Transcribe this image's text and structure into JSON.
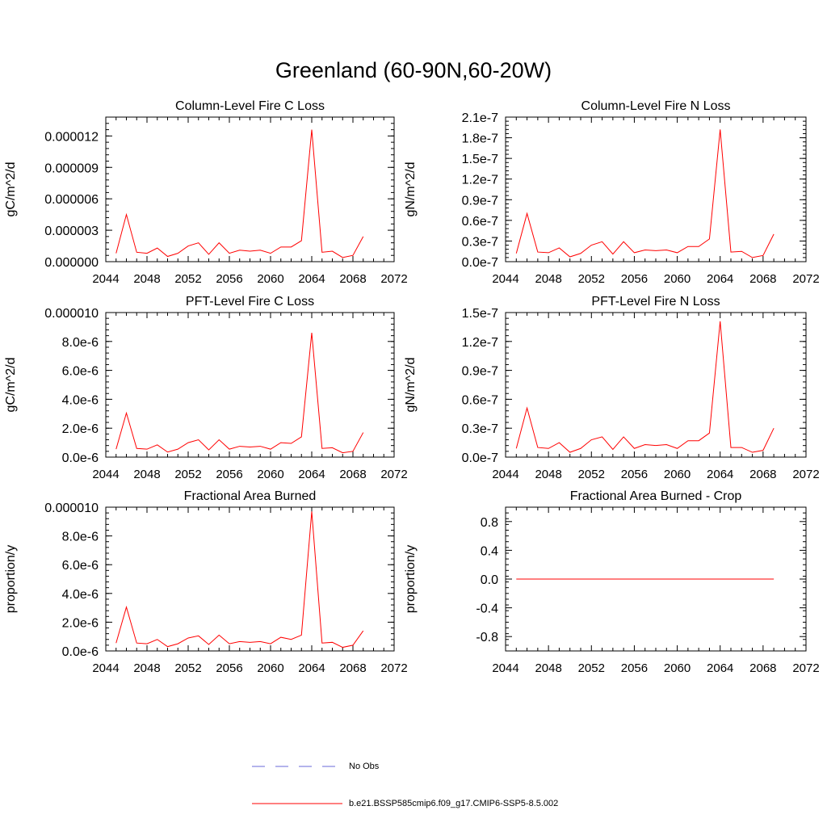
{
  "title": "Greenland (60-90N,60-20W)",
  "colors": {
    "series": "#ff0000",
    "obs": "#6a6ad8",
    "axis": "#000000"
  },
  "legend": {
    "obs_label": "No Obs",
    "series_label": "b.e21.BSSP585cmip6.f09_g17.CMIP6-SSP5-8.5.002"
  },
  "chart_data": [
    {
      "type": "line",
      "title": "Column-Level Fire C Loss",
      "ylabel": "gC/m^2/d",
      "xlim": [
        2044,
        2072
      ],
      "x_ticks": [
        "2044",
        "2048",
        "2052",
        "2056",
        "2060",
        "2064",
        "2068",
        "2072"
      ],
      "ylim": [
        0,
        1.38e-05
      ],
      "y_ticks": [
        0,
        3e-06,
        6e-06,
        9e-06,
        1.2e-05
      ],
      "y_tick_labels": [
        "0.000000",
        "0.000003",
        "0.000006",
        "0.000009",
        "0.000012"
      ],
      "x": [
        2045,
        2046,
        2047,
        2048,
        2049,
        2050,
        2051,
        2052,
        2053,
        2054,
        2055,
        2056,
        2057,
        2058,
        2059,
        2060,
        2061,
        2062,
        2063,
        2064,
        2065,
        2066,
        2067,
        2068,
        2069
      ],
      "series": [
        {
          "name": "b.e21.BSSP585cmip6.f09_g17.CMIP6-SSP5-8.5.002",
          "values": [
            8e-07,
            4.5e-06,
            9e-07,
            8e-07,
            1.3e-06,
            5e-07,
            8e-07,
            1.5e-06,
            1.8e-06,
            7e-07,
            1.8e-06,
            8e-07,
            1.1e-06,
            1e-06,
            1.1e-06,
            8e-07,
            1.4e-06,
            1.4e-06,
            2e-06,
            1.26e-05,
            9e-07,
            1e-06,
            4e-07,
            6e-07,
            2.4e-06
          ]
        }
      ]
    },
    {
      "type": "line",
      "title": "Column-Level Fire N Loss",
      "ylabel": "gN/m^2/d",
      "xlim": [
        2044,
        2072
      ],
      "x_ticks": [
        "2044",
        "2048",
        "2052",
        "2056",
        "2060",
        "2064",
        "2068",
        "2072"
      ],
      "ylim": [
        0,
        2.1e-07
      ],
      "y_ticks": [
        0,
        3e-08,
        6e-08,
        9e-08,
        1.2e-07,
        1.5e-07,
        1.8e-07,
        2.1e-07
      ],
      "y_tick_labels": [
        "0.0e-7",
        "0.3e-7",
        "0.6e-7",
        "0.9e-7",
        "1.2e-7",
        "1.5e-7",
        "1.8e-7",
        "2.1e-7"
      ],
      "x": [
        2045,
        2046,
        2047,
        2048,
        2049,
        2050,
        2051,
        2052,
        2053,
        2054,
        2055,
        2056,
        2057,
        2058,
        2059,
        2060,
        2061,
        2062,
        2063,
        2064,
        2065,
        2066,
        2067,
        2068,
        2069
      ],
      "series": [
        {
          "name": "b.e21.BSSP585cmip6.f09_g17.CMIP6-SSP5-8.5.002",
          "values": [
            1.2e-08,
            7e-08,
            1.4e-08,
            1.3e-08,
            2e-08,
            7e-09,
            1.2e-08,
            2.4e-08,
            2.9e-08,
            1.1e-08,
            2.9e-08,
            1.3e-08,
            1.7e-08,
            1.6e-08,
            1.7e-08,
            1.3e-08,
            2.2e-08,
            2.2e-08,
            3.3e-08,
            1.92e-07,
            1.4e-08,
            1.5e-08,
            6e-09,
            9e-09,
            4e-08
          ]
        }
      ]
    },
    {
      "type": "line",
      "title": "PFT-Level Fire C Loss",
      "ylabel": "gC/m^2/d",
      "xlim": [
        2044,
        2072
      ],
      "x_ticks": [
        "2044",
        "2048",
        "2052",
        "2056",
        "2060",
        "2064",
        "2068",
        "2072"
      ],
      "ylim": [
        0,
        1e-05
      ],
      "y_ticks": [
        0,
        2e-06,
        4e-06,
        6e-06,
        8e-06,
        1e-05
      ],
      "y_tick_labels": [
        "0.0e-6",
        "2.0e-6",
        "4.0e-6",
        "6.0e-6",
        "8.0e-6",
        "0.000010"
      ],
      "x": [
        2045,
        2046,
        2047,
        2048,
        2049,
        2050,
        2051,
        2052,
        2053,
        2054,
        2055,
        2056,
        2057,
        2058,
        2059,
        2060,
        2061,
        2062,
        2063,
        2064,
        2065,
        2066,
        2067,
        2068,
        2069
      ],
      "series": [
        {
          "name": "b.e21.BSSP585cmip6.f09_g17.CMIP6-SSP5-8.5.002",
          "values": [
            5.5e-07,
            3.05e-06,
            6e-07,
            5.5e-07,
            8.5e-07,
            3.5e-07,
            5.5e-07,
            1e-06,
            1.2e-06,
            5e-07,
            1.2e-06,
            5.5e-07,
            7.5e-07,
            7e-07,
            7.5e-07,
            5.5e-07,
            1e-06,
            9.5e-07,
            1.4e-06,
            8.6e-06,
            6e-07,
            6.5e-07,
            3e-07,
            4e-07,
            1.7e-06
          ]
        }
      ]
    },
    {
      "type": "line",
      "title": "PFT-Level Fire N Loss",
      "ylabel": "gN/m^2/d",
      "xlim": [
        2044,
        2072
      ],
      "x_ticks": [
        "2044",
        "2048",
        "2052",
        "2056",
        "2060",
        "2064",
        "2068",
        "2072"
      ],
      "ylim": [
        0,
        1.5e-07
      ],
      "y_ticks": [
        0,
        3e-08,
        6e-08,
        9e-08,
        1.2e-07,
        1.5e-07
      ],
      "y_tick_labels": [
        "0.0e-7",
        "0.3e-7",
        "0.6e-7",
        "0.9e-7",
        "1.2e-7",
        "1.5e-7"
      ],
      "x": [
        2045,
        2046,
        2047,
        2048,
        2049,
        2050,
        2051,
        2052,
        2053,
        2054,
        2055,
        2056,
        2057,
        2058,
        2059,
        2060,
        2061,
        2062,
        2063,
        2064,
        2065,
        2066,
        2067,
        2068,
        2069
      ],
      "series": [
        {
          "name": "b.e21.BSSP585cmip6.f09_g17.CMIP6-SSP5-8.5.002",
          "values": [
            9e-09,
            5.1e-08,
            1e-08,
            9e-09,
            1.5e-08,
            5e-09,
            9e-09,
            1.8e-08,
            2.1e-08,
            8e-09,
            2.1e-08,
            9e-09,
            1.3e-08,
            1.2e-08,
            1.3e-08,
            9e-09,
            1.7e-08,
            1.7e-08,
            2.5e-08,
            1.41e-07,
            1e-08,
            1e-08,
            5e-09,
            7e-09,
            3e-08
          ]
        }
      ]
    },
    {
      "type": "line",
      "title": "Fractional Area Burned",
      "ylabel": "proportion/y",
      "xlim": [
        2044,
        2072
      ],
      "x_ticks": [
        "2044",
        "2048",
        "2052",
        "2056",
        "2060",
        "2064",
        "2068",
        "2072"
      ],
      "ylim": [
        0,
        1e-05
      ],
      "y_ticks": [
        0,
        2e-06,
        4e-06,
        6e-06,
        8e-06,
        1e-05
      ],
      "y_tick_labels": [
        "0.0e-6",
        "2.0e-6",
        "4.0e-6",
        "6.0e-6",
        "8.0e-6",
        "0.000010"
      ],
      "x": [
        2045,
        2046,
        2047,
        2048,
        2049,
        2050,
        2051,
        2052,
        2053,
        2054,
        2055,
        2056,
        2057,
        2058,
        2059,
        2060,
        2061,
        2062,
        2063,
        2064,
        2065,
        2066,
        2067,
        2068,
        2069
      ],
      "series": [
        {
          "name": "b.e21.BSSP585cmip6.f09_g17.CMIP6-SSP5-8.5.002",
          "values": [
            5.5e-07,
            3.05e-06,
            5.5e-07,
            5e-07,
            8e-07,
            3e-07,
            5e-07,
            9e-07,
            1.05e-06,
            4.5e-07,
            1.1e-06,
            5e-07,
            6.5e-07,
            6e-07,
            6.5e-07,
            5e-07,
            9.5e-07,
            8e-07,
            1.1e-06,
            9.7e-06,
            5.5e-07,
            6e-07,
            2.5e-07,
            4e-07,
            1.4e-06
          ]
        }
      ]
    },
    {
      "type": "line",
      "title": "Fractional Area Burned - Crop",
      "ylabel": "proportion/y",
      "xlim": [
        2044,
        2072
      ],
      "x_ticks": [
        "2044",
        "2048",
        "2052",
        "2056",
        "2060",
        "2064",
        "2068",
        "2072"
      ],
      "ylim": [
        -1,
        1
      ],
      "y_ticks": [
        -0.8,
        -0.4,
        0,
        0.4,
        0.8
      ],
      "y_tick_labels": [
        "-0.8",
        "-0.4",
        "0.0",
        "0.4",
        "0.8"
      ],
      "x": [
        2045,
        2046,
        2047,
        2048,
        2049,
        2050,
        2051,
        2052,
        2053,
        2054,
        2055,
        2056,
        2057,
        2058,
        2059,
        2060,
        2061,
        2062,
        2063,
        2064,
        2065,
        2066,
        2067,
        2068,
        2069
      ],
      "series": [
        {
          "name": "b.e21.BSSP585cmip6.f09_g17.CMIP6-SSP5-8.5.002",
          "values": [
            0,
            0,
            0,
            0,
            0,
            0,
            0,
            0,
            0,
            0,
            0,
            0,
            0,
            0,
            0,
            0,
            0,
            0,
            0,
            0,
            0,
            0,
            0,
            0,
            0
          ]
        }
      ]
    }
  ]
}
